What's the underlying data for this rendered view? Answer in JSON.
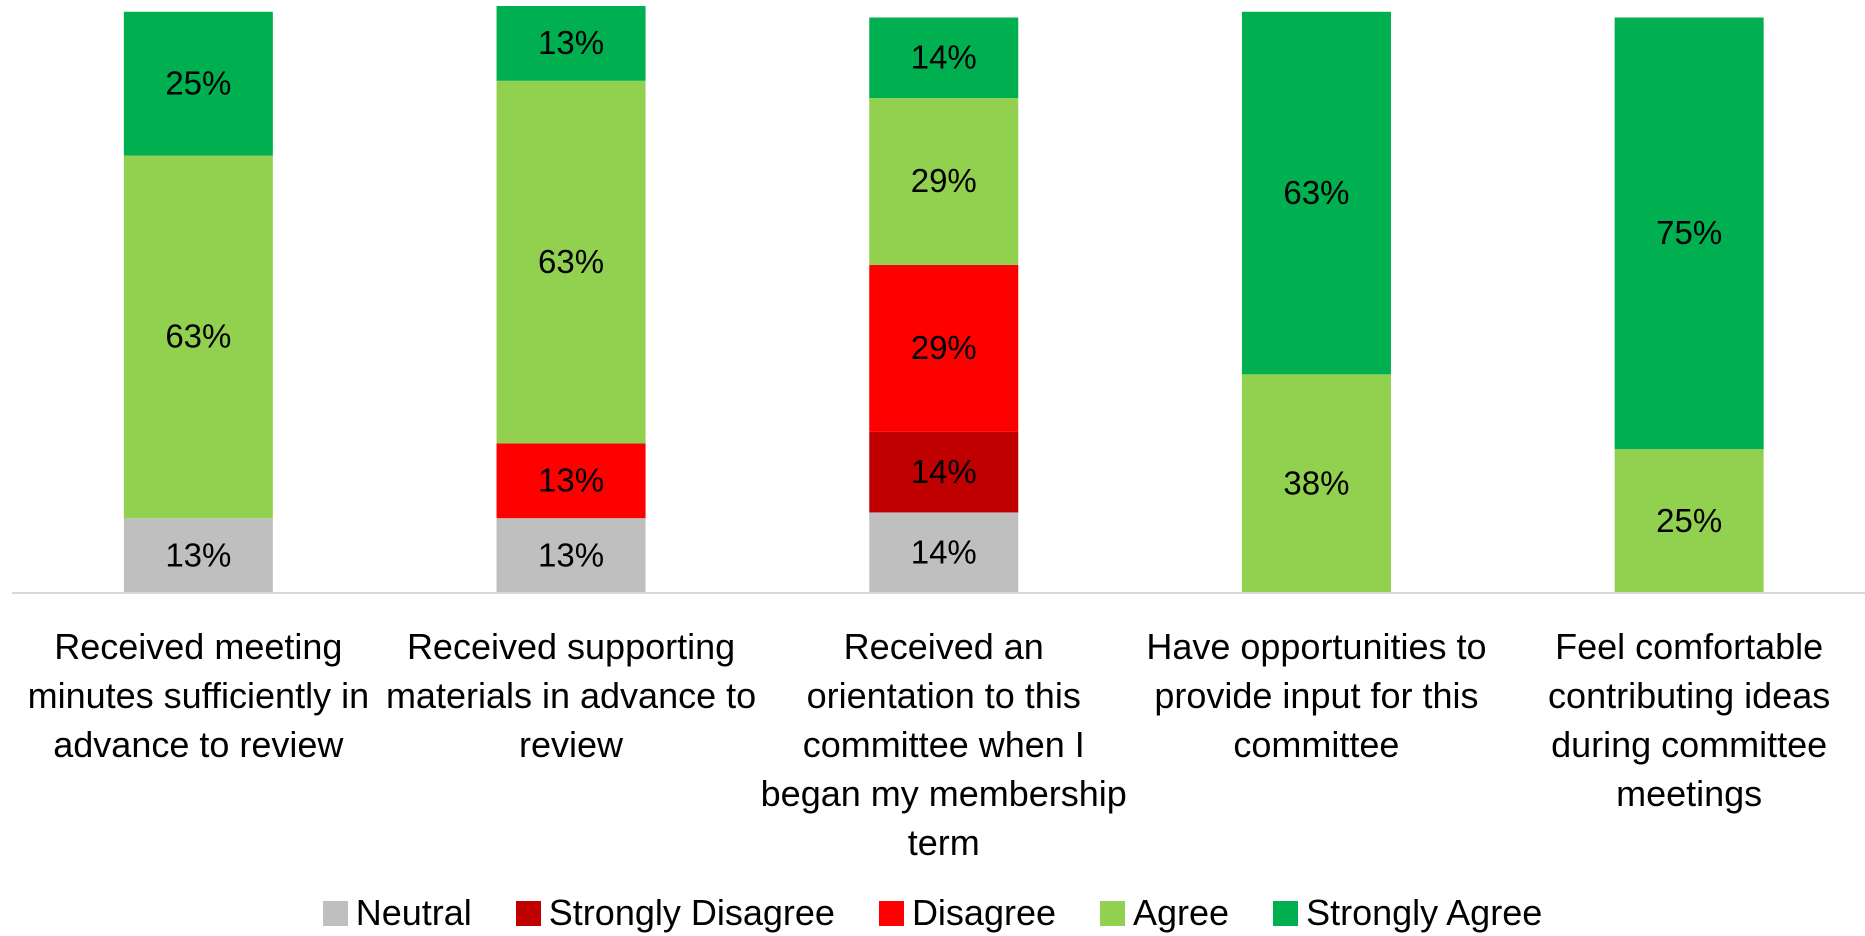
{
  "chart_data": {
    "type": "stacked-bar",
    "categories": [
      "Received meeting minutes sufficiently in advance to review",
      "Received supporting materials in advance to review",
      "Received an orientation to this committee when I began my membership term",
      "Have opportunities to provide input for this committee",
      "Feel comfortable contributing ideas during committee meetings"
    ],
    "series": [
      {
        "name": "Neutral",
        "color": "#bfbfbf",
        "values": [
          13,
          13,
          14,
          null,
          null
        ],
        "value_labels": [
          "13%",
          "13%",
          "14%",
          null,
          null
        ]
      },
      {
        "name": "Strongly Disagree",
        "color": "#c00000",
        "values": [
          null,
          null,
          14,
          null,
          null
        ],
        "value_labels": [
          null,
          null,
          "14%",
          null,
          null
        ]
      },
      {
        "name": "Disagree",
        "color": "#ff0000",
        "values": [
          null,
          13,
          29,
          null,
          null
        ],
        "value_labels": [
          null,
          "13%",
          "29%",
          null,
          null
        ]
      },
      {
        "name": "Agree",
        "color": "#92d050",
        "values": [
          63,
          63,
          29,
          38,
          25
        ],
        "value_labels": [
          "63%",
          "63%",
          "29%",
          "38%",
          "25%"
        ]
      },
      {
        "name": "Strongly Agree",
        "color": "#00b050",
        "values": [
          25,
          13,
          14,
          63,
          75
        ],
        "value_labels": [
          "25%",
          "13%",
          "14%",
          "63%",
          "75%"
        ]
      }
    ],
    "legend": "bottom"
  }
}
